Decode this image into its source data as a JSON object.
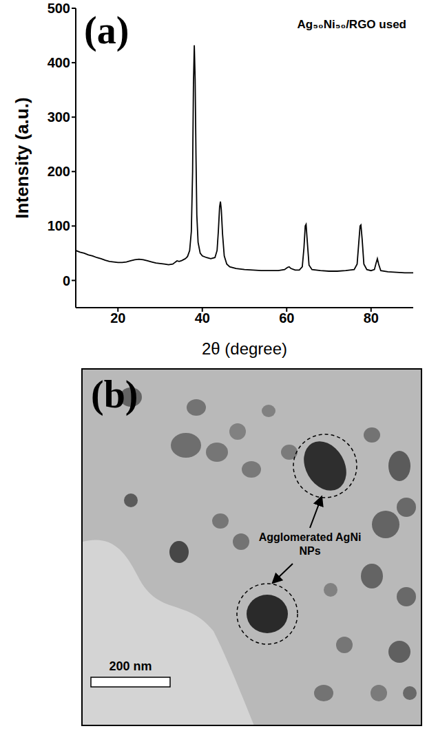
{
  "chart_data": {
    "type": "line",
    "panel": "(a)",
    "title": "Ag₅₀Ni₅₀/RGO used",
    "x_label": "2θ (degree)",
    "y_label": "Intensity (a.u.)",
    "x": [
      10,
      11,
      12,
      13,
      14,
      15,
      16,
      17,
      18,
      19,
      20,
      21,
      22,
      23,
      24,
      25,
      26,
      27,
      28,
      29,
      30,
      31,
      32,
      33,
      33.5,
      34,
      34.5,
      35,
      35.5,
      36,
      36.5,
      37,
      37.4,
      37.7,
      37.9,
      38.1,
      38.3,
      38.5,
      38.7,
      39,
      39.5,
      40,
      41,
      42,
      43,
      43.5,
      43.8,
      44.1,
      44.3,
      44.5,
      44.8,
      45.2,
      45.8,
      46.5,
      48,
      50,
      52,
      54,
      56,
      58,
      59.5,
      60.2,
      60.6,
      61,
      62,
      63,
      63.7,
      64.1,
      64.4,
      64.6,
      64.9,
      65.3,
      66,
      68,
      70,
      72,
      74,
      76,
      76.7,
      77.1,
      77.4,
      77.6,
      77.9,
      78.3,
      79,
      80,
      80.8,
      81.2,
      81.5,
      81.8,
      82.3,
      84,
      86,
      88,
      90
    ],
    "values": [
      55,
      52,
      50,
      47,
      45,
      42,
      40,
      37,
      35,
      34,
      33,
      33,
      34,
      36,
      38,
      39,
      38,
      36,
      34,
      32,
      31,
      30,
      29,
      30,
      33,
      36,
      35,
      36,
      38,
      40,
      44,
      55,
      90,
      200,
      360,
      432,
      370,
      230,
      120,
      70,
      50,
      45,
      42,
      40,
      42,
      55,
      90,
      135,
      145,
      130,
      85,
      45,
      30,
      25,
      22,
      20,
      19,
      18,
      18,
      18,
      20,
      24,
      25,
      22,
      19,
      19,
      25,
      60,
      100,
      103,
      70,
      28,
      20,
      18,
      17,
      17,
      18,
      20,
      30,
      70,
      100,
      102,
      75,
      30,
      20,
      18,
      20,
      32,
      40,
      30,
      18,
      16,
      15,
      14,
      14
    ],
    "color": "#000000",
    "xlim": [
      10,
      90
    ],
    "ylim": [
      -50,
      500
    ],
    "xticks": [
      20,
      40,
      60,
      80
    ],
    "yticks": [
      0,
      100,
      200,
      300,
      400,
      500
    ],
    "grid": false
  },
  "image": {
    "panel": "(b)",
    "annotation": "Agglomerated AgNi NPs",
    "scale_bar": "200 nm"
  }
}
